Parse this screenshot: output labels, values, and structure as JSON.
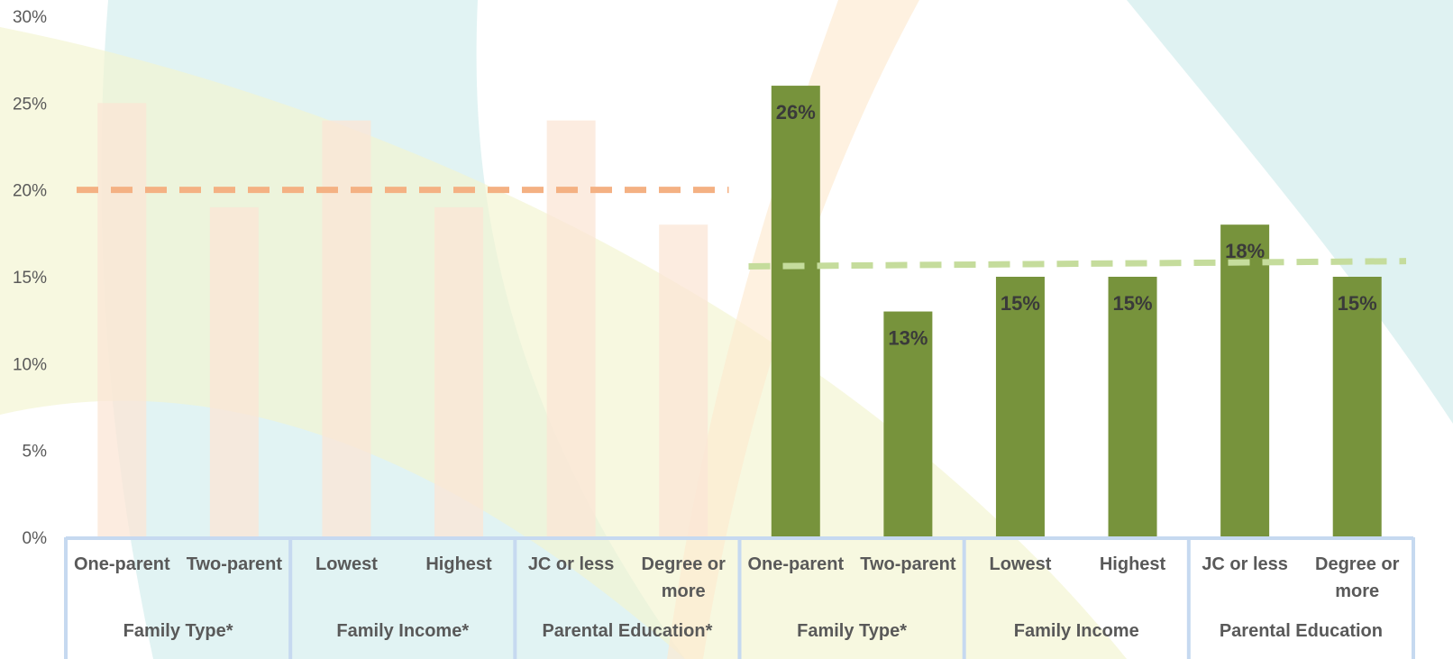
{
  "chart_data": {
    "type": "bar",
    "ylim": [
      0,
      30
    ],
    "yticks": [
      "0%",
      "5%",
      "10%",
      "15%",
      "20%",
      "25%",
      "30%"
    ],
    "ytick_values": [
      0,
      5,
      10,
      15,
      20,
      25,
      30
    ],
    "groups": [
      {
        "name": "Family Type*",
        "categories": [
          {
            "label": [
              "One-parent"
            ]
          },
          {
            "label": [
              "Two-parent"
            ]
          }
        ]
      },
      {
        "name": "Family Income*",
        "categories": [
          {
            "label": [
              "Lowest"
            ]
          },
          {
            "label": [
              "Highest"
            ]
          }
        ]
      },
      {
        "name": "Parental Education*",
        "categories": [
          {
            "label": [
              "JC or less"
            ]
          },
          {
            "label": [
              "Degree or",
              "more"
            ]
          }
        ]
      },
      {
        "name": "Family Type*",
        "categories": [
          {
            "label": [
              "One-parent"
            ]
          },
          {
            "label": [
              "Two-parent"
            ]
          }
        ]
      },
      {
        "name": "Family Income",
        "categories": [
          {
            "label": [
              "Lowest"
            ]
          },
          {
            "label": [
              "Highest"
            ]
          }
        ]
      },
      {
        "name": "Parental Education",
        "categories": [
          {
            "label": [
              "JC or less"
            ]
          },
          {
            "label": [
              "Degree or",
              "more"
            ]
          }
        ]
      }
    ],
    "series": [
      {
        "values": [
          25,
          19,
          24,
          19,
          24,
          18
        ],
        "color": "#fbe5d6",
        "show_labels": false
      },
      {
        "values": [
          26,
          13,
          15,
          15,
          18,
          15
        ],
        "labels": [
          "26%",
          "13%",
          "15%",
          "15%",
          "18%",
          "15%"
        ],
        "color": "#77933c",
        "show_labels": true
      }
    ],
    "reference_lines": [
      {
        "value": 20,
        "color": "#f4b183",
        "span": "series-1"
      },
      {
        "value": 15.6,
        "value_end": 15.9,
        "color": "#c5dc9c",
        "span": "series-2"
      }
    ],
    "group_border_color": "#c6d9f0",
    "grid": false
  }
}
